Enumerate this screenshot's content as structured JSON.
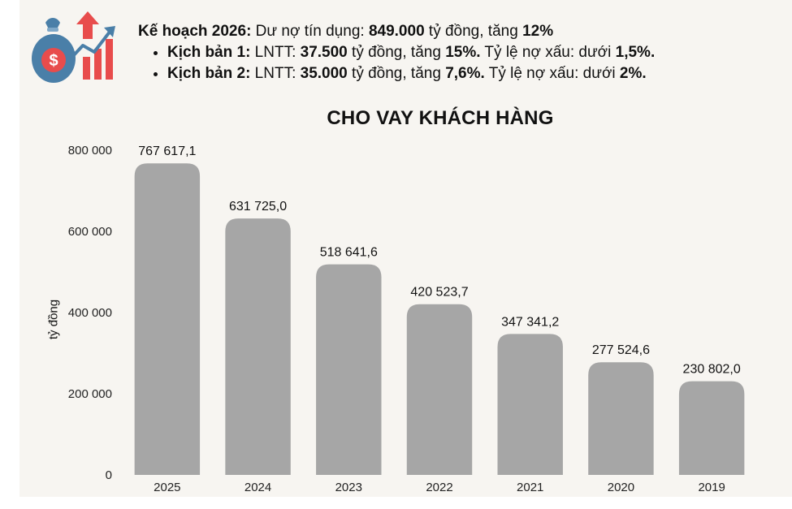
{
  "plan": {
    "line1_label": "Kế hoạch 2026:",
    "line1_text": " Dư nợ tín dụng: ",
    "line1_value": "849.000",
    "line1_text2": " tỷ đồng, tăng ",
    "line1_growth": "12%",
    "scenario1": {
      "label": "Kịch bản 1:",
      "text": " LNTT: ",
      "profit": "37.500",
      "text2": " tỷ đồng, tăng ",
      "growth": "15%.",
      "text3": " Tỷ lệ nợ xấu: dưới ",
      "npl": "1,5%."
    },
    "scenario2": {
      "label": "Kịch bản 2:",
      "text": " LNTT: ",
      "profit": "35.000",
      "text2": " tỷ đồng, tăng ",
      "growth": "7,6%.",
      "text3": " Tỷ lệ nợ xấu: dưới ",
      "npl": "2%."
    }
  },
  "icon": "money-bag-growth-icon",
  "colors": {
    "bar": "#a6a6a6",
    "panel": "#f7f5f1",
    "bag": "#4a7fa8",
    "arrow": "#e84c4c"
  },
  "chart_data": {
    "type": "bar",
    "title": "CHO VAY KHÁCH HÀNG",
    "ylabel": "tỷ đồng",
    "xlabel": "",
    "categories": [
      "2025",
      "2024",
      "2023",
      "2022",
      "2021",
      "2020",
      "2019"
    ],
    "values": [
      767617.1,
      631725.0,
      518641.6,
      420523.7,
      347341.2,
      277524.6,
      230802.0
    ],
    "value_labels": [
      "767 617,1",
      "631 725,0",
      "518 641,6",
      "420 523,7",
      "347 341,2",
      "277 524,6",
      "230 802,0"
    ],
    "yticks": [
      0,
      200000,
      400000,
      600000,
      800000
    ],
    "ytick_labels": [
      "0",
      "200 000",
      "400 000",
      "600 000",
      "800 000"
    ],
    "ylim": [
      0,
      800000
    ],
    "grid": false,
    "legend": "none"
  }
}
